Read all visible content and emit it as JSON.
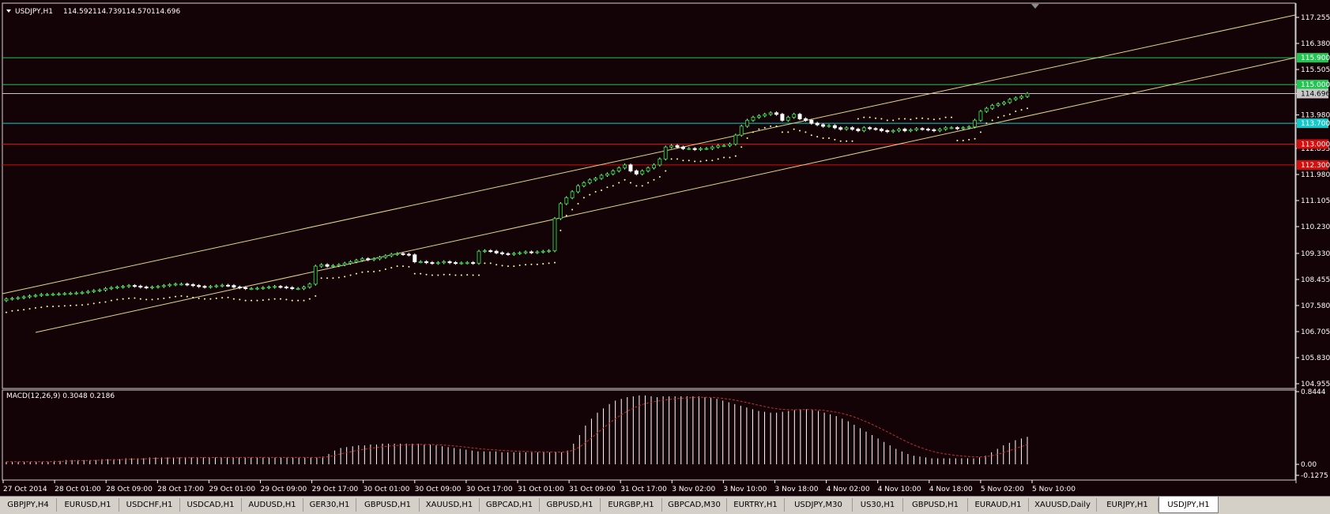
{
  "symbol_header": {
    "title": "USDJPY,H1",
    "open": "114.592",
    "high": "114.739",
    "low": "114.570",
    "close": "114.696"
  },
  "price_axis": {
    "ticks": [
      "117.255",
      "116.380",
      "115.505",
      "115.000",
      "114.696",
      "113.980",
      "113.700",
      "112.855",
      "111.980",
      "111.105",
      "110.230",
      "109.330",
      "108.455",
      "107.580",
      "106.705",
      "105.830",
      "104.955"
    ]
  },
  "levels": [
    {
      "price": "115.900",
      "color": "#23c552"
    },
    {
      "price": "115.000",
      "color": "#23c552"
    },
    {
      "price": "114.696",
      "color": "#c8c8c8"
    },
    {
      "price": "113.700",
      "color": "#16c9c9"
    },
    {
      "price": "113.000",
      "color": "#d40d0d"
    },
    {
      "price": "112.300",
      "color": "#d40d0d"
    }
  ],
  "indicator": {
    "label": "MACD(12,26,9) 0.3048 0.2186",
    "ticks": [
      "0.8444",
      "0.00",
      "-0.1275"
    ],
    "histogram": [
      0.03,
      0.03,
      0.03,
      0.03,
      0.03,
      0.03,
      0.03,
      0.03,
      0.04,
      0.04,
      0.05,
      0.05,
      0.05,
      0.05,
      0.05,
      0.05,
      0.06,
      0.06,
      0.06,
      0.06,
      0.07,
      0.07,
      0.07,
      0.07,
      0.08,
      0.08,
      0.08,
      0.08,
      0.08,
      0.08,
      0.08,
      0.08,
      0.08,
      0.08,
      0.08,
      0.08,
      0.08,
      0.08,
      0.08,
      0.08,
      0.08,
      0.08,
      0.08,
      0.08,
      0.08,
      0.08,
      0.08,
      0.08,
      0.08,
      0.08,
      0.08,
      0.08,
      0.08,
      0.09,
      0.12,
      0.16,
      0.19,
      0.2,
      0.21,
      0.22,
      0.22,
      0.23,
      0.23,
      0.24,
      0.24,
      0.24,
      0.24,
      0.24,
      0.24,
      0.24,
      0.23,
      0.23,
      0.22,
      0.21,
      0.2,
      0.19,
      0.18,
      0.17,
      0.16,
      0.15,
      0.15,
      0.15,
      0.15,
      0.14,
      0.14,
      0.14,
      0.14,
      0.14,
      0.14,
      0.14,
      0.14,
      0.14,
      0.14,
      0.14,
      0.16,
      0.24,
      0.34,
      0.45,
      0.53,
      0.6,
      0.65,
      0.7,
      0.74,
      0.76,
      0.78,
      0.79,
      0.8,
      0.8,
      0.79,
      0.78,
      0.79,
      0.79,
      0.79,
      0.79,
      0.79,
      0.79,
      0.79,
      0.78,
      0.77,
      0.76,
      0.74,
      0.72,
      0.7,
      0.68,
      0.66,
      0.64,
      0.62,
      0.61,
      0.6,
      0.6,
      0.61,
      0.62,
      0.63,
      0.64,
      0.64,
      0.63,
      0.62,
      0.6,
      0.58,
      0.56,
      0.53,
      0.5,
      0.46,
      0.42,
      0.38,
      0.34,
      0.3,
      0.26,
      0.22,
      0.18,
      0.15,
      0.12,
      0.1,
      0.09,
      0.08,
      0.07,
      0.07,
      0.07,
      0.07,
      0.07,
      0.07,
      0.07,
      0.07,
      0.08,
      0.1,
      0.14,
      0.18,
      0.22,
      0.25,
      0.28,
      0.3,
      0.32
    ]
  },
  "time_axis": {
    "ticks": [
      "27 Oct 2014",
      "28 Oct 01:00",
      "28 Oct 09:00",
      "28 Oct 17:00",
      "29 Oct 01:00",
      "29 Oct 09:00",
      "29 Oct 17:00",
      "30 Oct 01:00",
      "30 Oct 09:00",
      "30 Oct 17:00",
      "31 Oct 01:00",
      "31 Oct 09:00",
      "31 Oct 17:00",
      "3 Nov 02:00",
      "3 Nov 10:00",
      "3 Nov 18:00",
      "4 Nov 02:00",
      "4 Nov 10:00",
      "4 Nov 18:00",
      "5 Nov 02:00",
      "5 Nov 10:00"
    ]
  },
  "chart_data": {
    "type": "candlestick",
    "symbol": "USDJPY",
    "timeframe": "H1",
    "ylim": [
      104.955,
      117.255
    ],
    "closes": [
      107.8,
      107.82,
      107.84,
      107.87,
      107.9,
      107.92,
      107.95,
      107.95,
      107.96,
      107.97,
      107.98,
      107.99,
      108.0,
      108.02,
      108.05,
      108.08,
      108.1,
      108.15,
      108.18,
      108.2,
      108.22,
      108.25,
      108.23,
      108.2,
      108.18,
      108.2,
      108.22,
      108.25,
      108.28,
      108.3,
      108.3,
      108.28,
      108.25,
      108.22,
      108.2,
      108.22,
      108.24,
      108.26,
      108.25,
      108.2,
      108.18,
      108.15,
      108.15,
      108.16,
      108.18,
      108.2,
      108.22,
      108.2,
      108.18,
      108.15,
      108.15,
      108.2,
      108.3,
      108.9,
      108.95,
      108.9,
      108.92,
      108.95,
      109.0,
      109.05,
      109.1,
      109.15,
      109.12,
      109.15,
      109.2,
      109.25,
      109.3,
      109.32,
      109.3,
      109.28,
      109.05,
      109.05,
      109.02,
      109.0,
      109.02,
      109.05,
      109.02,
      109.0,
      109.01,
      109.02,
      109.0,
      109.4,
      109.42,
      109.4,
      109.35,
      109.32,
      109.3,
      109.33,
      109.35,
      109.38,
      109.36,
      109.38,
      109.4,
      109.42,
      110.5,
      111.0,
      111.2,
      111.4,
      111.6,
      111.7,
      111.8,
      111.85,
      111.95,
      112.0,
      112.1,
      112.2,
      112.3,
      112.1,
      112.0,
      112.1,
      112.2,
      112.3,
      112.5,
      112.9,
      112.95,
      112.9,
      112.85,
      112.85,
      112.82,
      112.85,
      112.85,
      112.9,
      112.95,
      112.95,
      113.0,
      113.3,
      113.6,
      113.8,
      113.9,
      113.95,
      114.0,
      114.05,
      114.0,
      113.8,
      113.9,
      114.0,
      113.85,
      113.8,
      113.7,
      113.65,
      113.6,
      113.62,
      113.55,
      113.5,
      113.55,
      113.5,
      113.45,
      113.55,
      113.52,
      113.5,
      113.45,
      113.42,
      113.45,
      113.5,
      113.45,
      113.48,
      113.52,
      113.5,
      113.48,
      113.45,
      113.5,
      113.55,
      113.55,
      113.52,
      113.55,
      113.58,
      113.8,
      114.1,
      114.2,
      114.3,
      114.35,
      114.4,
      114.5,
      114.55,
      114.6,
      114.696
    ],
    "last": {
      "open": 114.592,
      "high": 114.739,
      "low": 114.57,
      "close": 114.696
    }
  },
  "tabs": [
    {
      "label": "GBPJPY,H4",
      "active": false
    },
    {
      "label": "EURUSD,H1",
      "active": false
    },
    {
      "label": "USDCHF,H1",
      "active": false
    },
    {
      "label": "USDCAD,H1",
      "active": false
    },
    {
      "label": "AUDUSD,H1",
      "active": false
    },
    {
      "label": "GER30,H1",
      "active": false
    },
    {
      "label": "GBPUSD,H1",
      "active": false
    },
    {
      "label": "XAUUSD,H1",
      "active": false
    },
    {
      "label": "GBPCAD,H1",
      "active": false
    },
    {
      "label": "GBPUSD,H1",
      "active": false
    },
    {
      "label": "EURGBP,H1",
      "active": false
    },
    {
      "label": "GBPCAD,M30",
      "active": false
    },
    {
      "label": "EURTRY,H1",
      "active": false
    },
    {
      "label": "USDJPY,M30",
      "active": false
    },
    {
      "label": "US30,H1",
      "active": false
    },
    {
      "label": "GBPUSD,H1",
      "active": false
    },
    {
      "label": "EURAUD,H1",
      "active": false
    },
    {
      "label": "XAUUSD,Daily",
      "active": false
    },
    {
      "label": "EURJPY,H1",
      "active": false
    },
    {
      "label": "USDJPY,H1",
      "active": true
    }
  ],
  "colors": {
    "background": "#140306",
    "axis": "#ffffff",
    "bull_candle": "#27c43a",
    "bear_candle": "#ffffff",
    "channel": "#e4d48a",
    "sar": "#ffff99",
    "signal": "#c03030"
  }
}
